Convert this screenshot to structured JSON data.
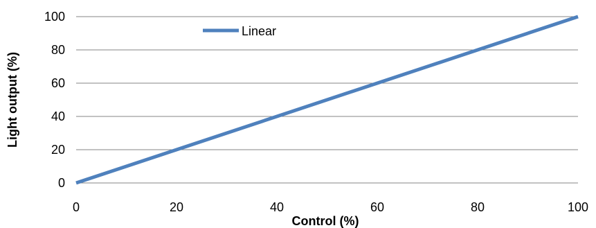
{
  "chart_data": {
    "type": "line",
    "title": "",
    "xlabel": "Control (%)",
    "ylabel": "Light output (%)",
    "xlim": [
      0,
      100
    ],
    "ylim": [
      0,
      100
    ],
    "xticks": [
      0,
      20,
      40,
      60,
      80,
      100
    ],
    "yticks": [
      0,
      20,
      40,
      60,
      80,
      100
    ],
    "grid": "horizontal",
    "legend_position": "top-left",
    "series": [
      {
        "name": "Linear",
        "color": "#4F81BD",
        "x": [
          0,
          20,
          40,
          60,
          80,
          100
        ],
        "y": [
          0,
          20,
          40,
          60,
          80,
          100
        ]
      }
    ]
  }
}
